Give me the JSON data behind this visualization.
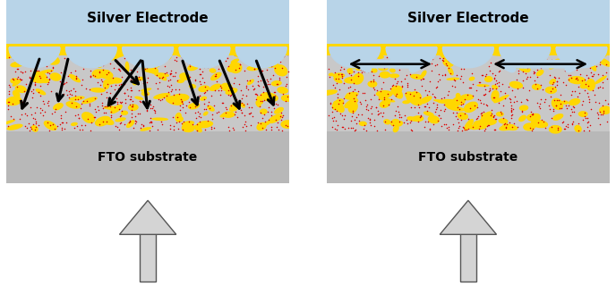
{
  "fig_width": 6.88,
  "fig_height": 3.2,
  "dpi": 100,
  "bg_color": "#ffffff",
  "silver_color": "#b8d4e8",
  "silver_grad_top": "#cce0f0",
  "silver_grad_bot": "#a0c4dc",
  "yellow_color": "#FFD700",
  "fto_color": "#b8b8b8",
  "active_color": "#c8c8c8",
  "red_dot_color": "#dd0000",
  "label_color": "#000000",
  "title_fontsize": 11,
  "label_fontsize": 10,
  "fto_label": "FTO substrate",
  "silver_label": "Silver Electrode",
  "num_red_dots": 700,
  "num_yellow_blobs": 120
}
